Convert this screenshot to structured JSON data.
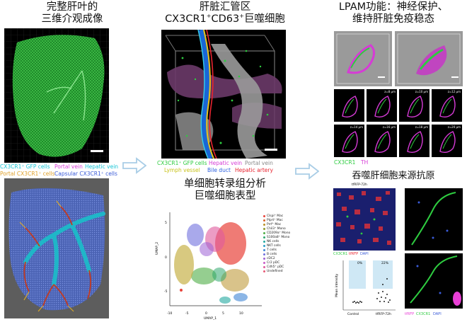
{
  "left": {
    "title_line1": "完整肝叶的",
    "title_line2": "三维介观成像",
    "legend_gfp": "CX3CR1⁺ GFP cells",
    "legend_portal": "Portal vein",
    "legend_hepatic": "Hepatic vein",
    "legend_portal_cells": "Portal CX3CR1⁺ cells",
    "legend_capsular": "Capsular CX3CR1⁺ cells"
  },
  "middle": {
    "title_line1": "肝脏汇管区",
    "title_line2_a": "CX3CR1",
    "title_sup1": "+",
    "title_line2_b": "CD63",
    "title_sup2": "+",
    "title_line2_c": "巨噬细胞",
    "legend_gfp": "CX3CR1⁺ GFP cells",
    "legend_hepatic": "Hepatic vein",
    "legend_portal": "Portal vein",
    "legend_lymph": "Lymph vessel",
    "legend_bile": "Bile duct",
    "legend_artery": "Hepatic artery",
    "umap_title_line1": "单细胞转录组分析",
    "umap_title_line2": "巨噬细胞表型"
  },
  "umap": {
    "xlabel": "UMAP_1",
    "ylabel": "UMAP_2",
    "xticks": [
      "-10",
      "-5",
      "0",
      "5",
      "10"
    ],
    "yticks": [
      "5",
      "0",
      "-5"
    ],
    "legend": [
      {
        "label": "Clspi⁺ Mac",
        "color": "#e8433a"
      },
      {
        "label": "Plprt⁺ Mac",
        "color": "#d8632b"
      },
      {
        "label": "Prrf⁺ Mac",
        "color": "#b9922a"
      },
      {
        "label": "Chil3⁺ Mono",
        "color": "#8f9c2f"
      },
      {
        "label": "CD209a⁺ Mono",
        "color": "#4fae46"
      },
      {
        "label": "S100a8⁺ Mono",
        "color": "#2fa86e"
      },
      {
        "label": "NK cells",
        "color": "#23a9a0"
      },
      {
        "label": "NKT cells",
        "color": "#2d9fc7"
      },
      {
        "label": "T cells",
        "color": "#3f86d6"
      },
      {
        "label": "B cells",
        "color": "#6f6fdd"
      },
      {
        "label": "cDC2",
        "color": "#9d61d6"
      },
      {
        "label": "Cr2 pDC",
        "color": "#c95bc7"
      },
      {
        "label": "Cdh5⁺ pDC",
        "color": "#e05a9d"
      },
      {
        "label": "Undefined",
        "color": "#e85b77"
      }
    ]
  },
  "right": {
    "title_line1": "LPAM功能：神经保护、",
    "title_line2": "维持肝脏免疫稳态",
    "depths": [
      "z=8 μm",
      "z=10 μm",
      "z=12 μm",
      "z=14 μm",
      "z=16 μm",
      "z=18 μm",
      "z=20 μm"
    ],
    "legend_cx3cr1": "CX3CR1",
    "legend_th": "TH",
    "antigen_title": "吞噬肝细胞来源抗原",
    "label_72h": "tfRFP-72h",
    "legend2_cx3cr1": "CX3CR1",
    "legend2_tfrfp": "tfRFP",
    "legend2_dapi": "DAPI",
    "chart_pct1": "0%",
    "chart_pct2": "22%",
    "chart_ylabel": "Mean intensity",
    "chart_x1": "Control",
    "chart_x2": "tfRFP-72h",
    "legend3_tfrfp": "tfRFP",
    "legend3_cx3cr1": "CX3CR1",
    "legend3_dapi": "DAPI"
  },
  "colors": {
    "gfp": "#2ecc40",
    "portal": "#d63bd6",
    "hepatic": "#17c4d6",
    "gold": "#e0a12a",
    "blue": "#3a5bd8",
    "red": "#e8242f",
    "yellow": "#c8c21b",
    "arrow": "#a9cde6"
  }
}
